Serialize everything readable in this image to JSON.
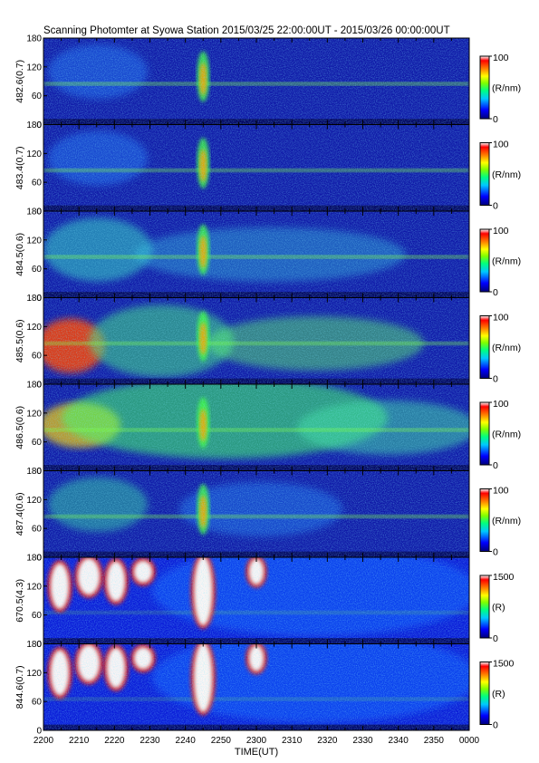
{
  "chart_data": {
    "type": "heatmap",
    "title": "Scanning Photomter at Syowa Station 2015/03/25 22:00:00UT - 2015/03/26 00:00:00UT",
    "xlabel": "TIME(UT)",
    "x_ticks": [
      "2200",
      "2210",
      "2220",
      "2230",
      "2240",
      "2250",
      "2300",
      "2310",
      "2320",
      "2330",
      "2340",
      "2350",
      "0000"
    ],
    "y_ticks": [
      "0",
      "60",
      "120",
      "180"
    ],
    "ylim": [
      0,
      180
    ],
    "colormap": [
      "#000080",
      "#0000ff",
      "#00c8ff",
      "#00ff80",
      "#80ff00",
      "#ffff00",
      "#ff8000",
      "#ff0000",
      "#ffffff"
    ],
    "panels": [
      {
        "ylabel": "482.6(0.7)",
        "cbar_max": "100",
        "cbar_min": "0",
        "unit": "(R/nm)"
      },
      {
        "ylabel": "483.4(0.7)",
        "cbar_max": "100",
        "cbar_min": "0",
        "unit": "(R/nm)"
      },
      {
        "ylabel": "484.5(0.6)",
        "cbar_max": "100",
        "cbar_min": "0",
        "unit": "(R/nm)"
      },
      {
        "ylabel": "485.5(0.6)",
        "cbar_max": "100",
        "cbar_min": "0",
        "unit": "(R/nm)"
      },
      {
        "ylabel": "486.5(0.6)",
        "cbar_max": "100",
        "cbar_min": "0",
        "unit": "(R/nm)"
      },
      {
        "ylabel": "487.4(0.6)",
        "cbar_max": "100",
        "cbar_min": "0",
        "unit": "(R/nm)"
      },
      {
        "ylabel": "670.5(4.3)",
        "cbar_max": "1500",
        "cbar_min": "0",
        "unit": "(R)"
      },
      {
        "ylabel": "844.6(0.7)",
        "cbar_max": "1500",
        "cbar_min": "0",
        "unit": "(R)"
      }
    ]
  }
}
